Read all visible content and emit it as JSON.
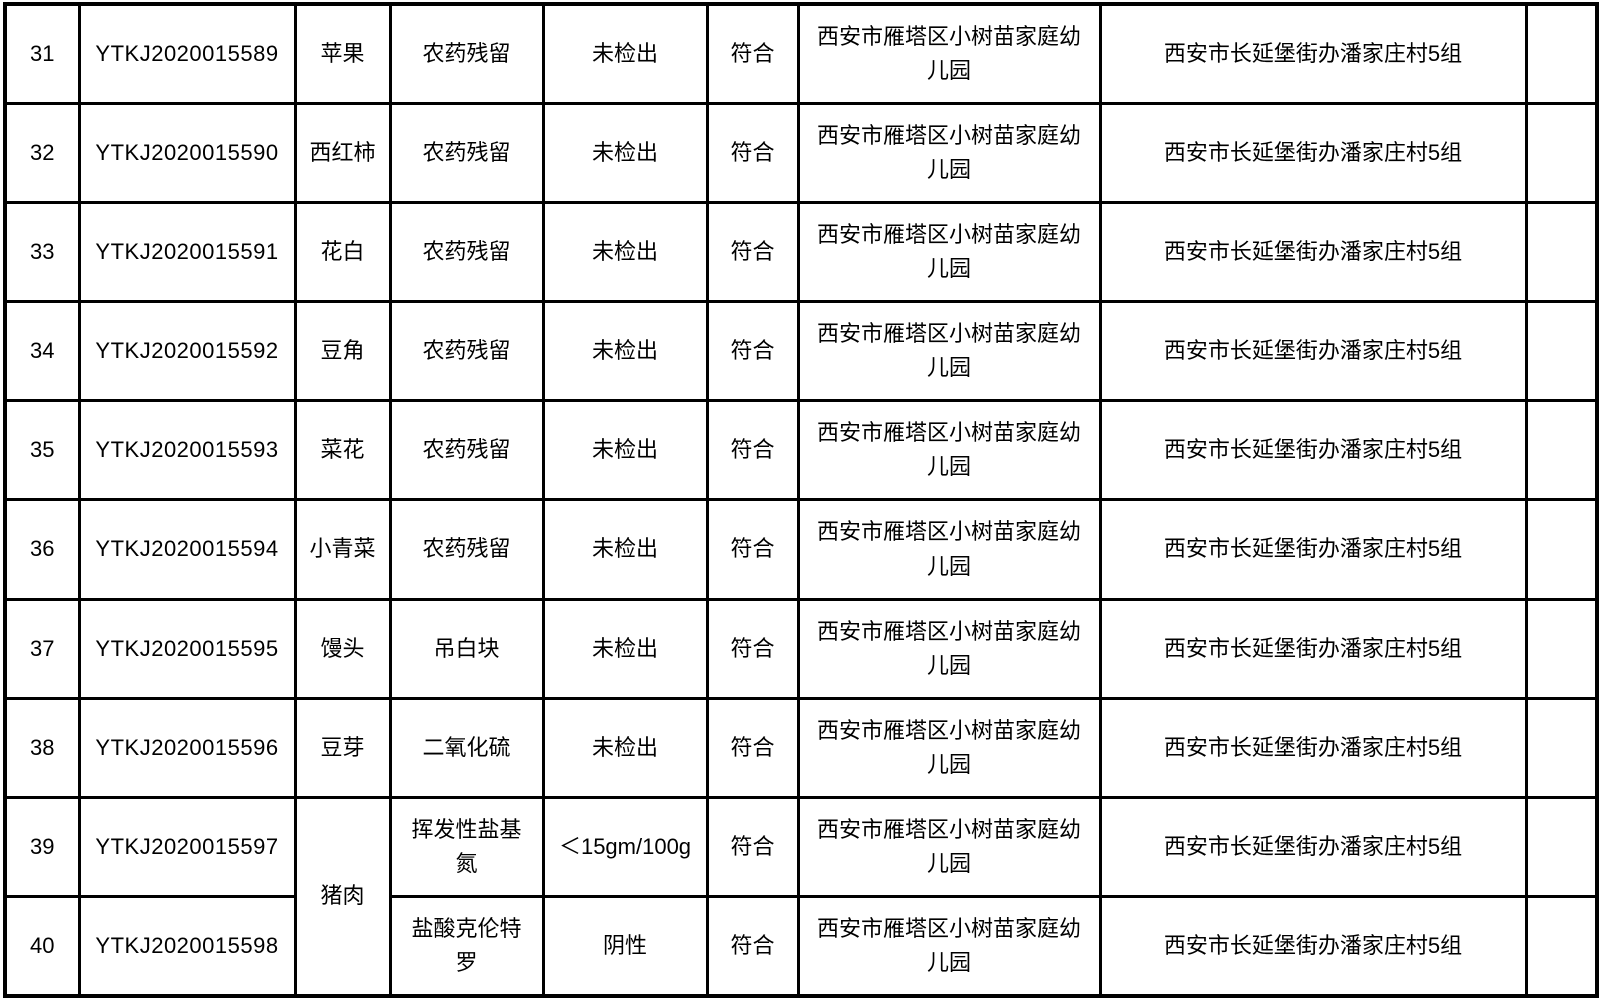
{
  "page": {
    "background_color": "#ffffff",
    "border_color": "#000000",
    "text_color": "#000000"
  },
  "table": {
    "merged_sample_name_note": "rows 39 and 40 share one sample_name cell",
    "rows": [
      {
        "no": "31",
        "sample_id": "YTKJ2020015589",
        "sample_name": "苹果",
        "test_item": "农药残留",
        "result": "未检出",
        "conclusion": "符合",
        "unit": "西安市雁塔区小树苗家庭幼儿园",
        "address": "西安市长延堡街办潘家庄村5组",
        "remark": ""
      },
      {
        "no": "32",
        "sample_id": "YTKJ2020015590",
        "sample_name": "西红柿",
        "test_item": "农药残留",
        "result": "未检出",
        "conclusion": "符合",
        "unit": "西安市雁塔区小树苗家庭幼儿园",
        "address": "西安市长延堡街办潘家庄村5组",
        "remark": ""
      },
      {
        "no": "33",
        "sample_id": "YTKJ2020015591",
        "sample_name": "花白",
        "test_item": "农药残留",
        "result": "未检出",
        "conclusion": "符合",
        "unit": "西安市雁塔区小树苗家庭幼儿园",
        "address": "西安市长延堡街办潘家庄村5组",
        "remark": ""
      },
      {
        "no": "34",
        "sample_id": "YTKJ2020015592",
        "sample_name": "豆角",
        "test_item": "农药残留",
        "result": "未检出",
        "conclusion": "符合",
        "unit": "西安市雁塔区小树苗家庭幼儿园",
        "address": "西安市长延堡街办潘家庄村5组",
        "remark": ""
      },
      {
        "no": "35",
        "sample_id": "YTKJ2020015593",
        "sample_name": "菜花",
        "test_item": "农药残留",
        "result": "未检出",
        "conclusion": "符合",
        "unit": "西安市雁塔区小树苗家庭幼儿园",
        "address": "西安市长延堡街办潘家庄村5组",
        "remark": ""
      },
      {
        "no": "36",
        "sample_id": "YTKJ2020015594",
        "sample_name": "小青菜",
        "test_item": "农药残留",
        "result": "未检出",
        "conclusion": "符合",
        "unit": "西安市雁塔区小树苗家庭幼儿园",
        "address": "西安市长延堡街办潘家庄村5组",
        "remark": ""
      },
      {
        "no": "37",
        "sample_id": "YTKJ2020015595",
        "sample_name": "馒头",
        "test_item": "吊白块",
        "result": "未检出",
        "conclusion": "符合",
        "unit": "西安市雁塔区小树苗家庭幼儿园",
        "address": "西安市长延堡街办潘家庄村5组",
        "remark": ""
      },
      {
        "no": "38",
        "sample_id": "YTKJ2020015596",
        "sample_name": "豆芽",
        "test_item": "二氧化硫",
        "result": "未检出",
        "conclusion": "符合",
        "unit": "西安市雁塔区小树苗家庭幼儿园",
        "address": "西安市长延堡街办潘家庄村5组",
        "remark": ""
      },
      {
        "no": "39",
        "sample_id": "YTKJ2020015597",
        "sample_name": "猪肉",
        "test_item": "挥发性盐基氮",
        "result": "＜15gm/100g",
        "conclusion": "符合",
        "unit": "西安市雁塔区小树苗家庭幼儿园",
        "address": "西安市长延堡街办潘家庄村5组",
        "remark": ""
      },
      {
        "no": "40",
        "sample_id": "YTKJ2020015598",
        "test_item": "盐酸克伦特罗",
        "result": "阴性",
        "conclusion": "符合",
        "unit": "西安市雁塔区小树苗家庭幼儿园",
        "address": "西安市长延堡街办潘家庄村5组",
        "remark": ""
      }
    ]
  }
}
